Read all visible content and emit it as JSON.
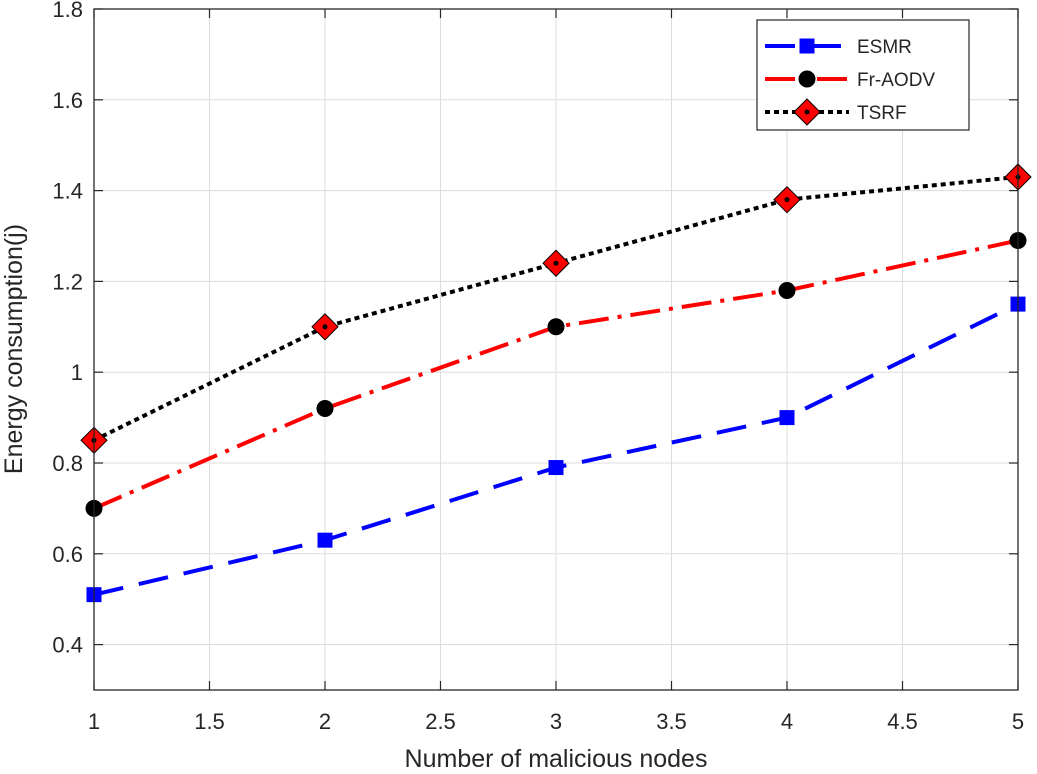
{
  "chart_data": {
    "type": "line",
    "xlabel": "Number of malicious nodes",
    "ylabel": "Energy consumption(j)",
    "xlim": [
      1,
      5
    ],
    "ylim": [
      0.3,
      1.8
    ],
    "xticks": [
      "1",
      "1.5",
      "2",
      "2.5",
      "3",
      "3.5",
      "4",
      "4.5",
      "5"
    ],
    "yticks": [
      "0.4",
      "0.6",
      "0.8",
      "1",
      "1.2",
      "1.4",
      "1.6",
      "1.8"
    ],
    "grid": true,
    "legend_position": "top-right",
    "x": [
      1,
      2,
      3,
      4,
      5
    ],
    "series": [
      {
        "name": "ESMR",
        "values": [
          0.51,
          0.63,
          0.79,
          0.9,
          1.15
        ],
        "color": "#0000ff",
        "line_style": "dashed",
        "marker": "square"
      },
      {
        "name": "Fr-AODV",
        "values": [
          0.7,
          0.92,
          1.1,
          1.18,
          1.29
        ],
        "color": "#ff0000",
        "line_style": "dash-dot",
        "marker": "circle",
        "marker_color": "#000000"
      },
      {
        "name": "TSRF",
        "values": [
          0.85,
          1.1,
          1.24,
          1.38,
          1.43
        ],
        "color": "#000000",
        "line_style": "dotted",
        "marker": "diamond",
        "marker_color": "#ff0000"
      }
    ]
  }
}
